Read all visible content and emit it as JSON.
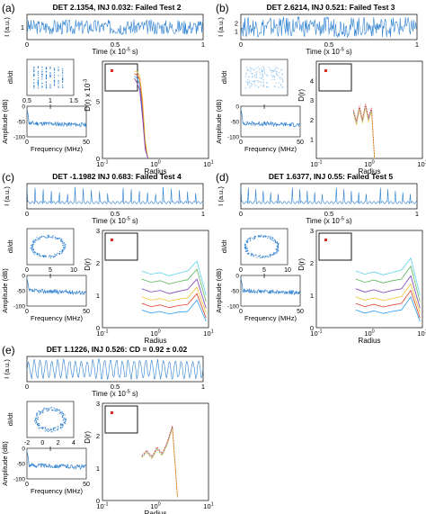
{
  "figure": {
    "domain": "Chart"
  },
  "colors": {
    "trace": "#2b7fd0",
    "trace_light": "#8ec4ee",
    "curves": [
      "#2a9df4",
      "#e0402a",
      "#f2c233",
      "#7a3ab8",
      "#5cb85c",
      "#61d4e8"
    ],
    "marker": "#e8261d",
    "axis": "#000000"
  },
  "chart_data": [
    {
      "panel": "(a)",
      "type": "line",
      "title": "DET 2.1354, INJ 0.032: Failed Test 2",
      "time_series": {
        "ylabel": "I (a.u.)",
        "xlabel": "Time (x 10^-5 s)",
        "xlim": [
          0,
          1
        ],
        "xticks": [
          "0",
          "0.5",
          "1"
        ],
        "ylim": [
          0.5,
          1.5
        ],
        "yticks": [
          "1"
        ],
        "pattern": "noise",
        "spikes": 0,
        "amplitude": 0.35
      },
      "phase": {
        "ylabel": "dI/dt",
        "xlabel": "I",
        "xticks": [
          "0.5",
          "1",
          "1.5"
        ],
        "shape": "stripes"
      },
      "spectrum": {
        "ylabel": "Amplitude (dB)",
        "xlabel": "Frequency (MHz)",
        "xticks": [
          "0",
          "50"
        ],
        "yticks": [
          "0",
          "-50",
          "-100"
        ],
        "ylim": [
          -100,
          0
        ],
        "level": -55
      },
      "correlation": {
        "ylabel": "D(r) x 10^-3",
        "xlabel": "Radius",
        "xscale": "log",
        "xticks": [
          "10^-1",
          "10^0",
          "10^1"
        ],
        "ylim": [
          0,
          8.5
        ],
        "yticks": [
          "0",
          "5"
        ],
        "x_range": [
          0.4,
          0.72
        ],
        "curves": [
          [
            7.2,
            7.0,
            6.5,
            4.0,
            1.0,
            0
          ],
          [
            7.4,
            7.3,
            6.9,
            4.6,
            1.3,
            0
          ],
          [
            7.6,
            7.6,
            7.2,
            5.2,
            1.6,
            0
          ],
          [
            7.0,
            6.6,
            6.0,
            3.6,
            0.8,
            0
          ]
        ]
      }
    },
    {
      "panel": "(b)",
      "type": "line",
      "title": "DET 2.6214, INJ 0.521: Failed Test 3",
      "time_series": {
        "ylabel": "I (a.u.)",
        "xlabel": "Time (x 10^-5 s)",
        "xlim": [
          0,
          1
        ],
        "xticks": [
          "0",
          "0.5",
          "1"
        ],
        "ylim": [
          0.5,
          2.5
        ],
        "yticks": [
          "1",
          "2"
        ],
        "pattern": "dense",
        "spikes": 0,
        "amplitude": 0.4
      },
      "phase": {
        "ylabel": "dI/dt",
        "xlabel": "I",
        "xticks": [],
        "shape": "faint"
      },
      "spectrum": {
        "ylabel": "Amplitude (dB)",
        "xlabel": "Frequency (MHz)",
        "xticks": [
          "0",
          "50"
        ],
        "yticks": [
          "0",
          "-50",
          "-100"
        ],
        "ylim": [
          -100,
          0
        ],
        "level": -55
      },
      "correlation": {
        "ylabel": "D(r)",
        "xlabel": "Radius",
        "xscale": "log",
        "xticks": [
          "10^-1",
          "10^0",
          "10^1"
        ],
        "ylim": [
          0,
          5
        ],
        "yticks": [
          "1",
          "2",
          "3",
          "4"
        ],
        "x_range": [
          0.5,
          1.25
        ],
        "curves": [
          [
            2.4,
            1.8,
            2.6,
            1.9,
            2.7,
            2.0,
            2.5,
            0
          ],
          [
            2.5,
            1.9,
            2.7,
            2.0,
            2.8,
            2.1,
            2.6,
            0
          ],
          [
            2.3,
            1.7,
            2.5,
            1.8,
            2.6,
            1.9,
            2.4,
            0
          ]
        ]
      }
    },
    {
      "panel": "(c)",
      "type": "line",
      "title": "DET -1.1982 INJ 0.683: Failed Test 4",
      "time_series": {
        "ylabel": "I (a.u.)",
        "xlabel": "Time (x 10^-5 s)",
        "xlim": [
          0,
          1
        ],
        "xticks": [
          "0",
          "0.5",
          "1"
        ],
        "ylim": [
          0,
          1
        ],
        "yticks": [],
        "pattern": "spikes",
        "spikes": 22,
        "amplitude": 0.8
      },
      "phase": {
        "ylabel": "dI/dt",
        "xlabel": "I",
        "xticks": [
          "0",
          "5",
          "10"
        ],
        "shape": "loop"
      },
      "spectrum": {
        "ylabel": "Amplitude (dB)",
        "xlabel": "Frequency (MHz)",
        "xticks": [
          "0",
          "50"
        ],
        "yticks": [
          "0",
          "-50",
          "-100"
        ],
        "ylim": [
          -100,
          0
        ],
        "level": -50
      },
      "correlation": {
        "ylabel": "D(r)",
        "xlabel": "Radius",
        "xscale": "log",
        "xticks": [
          "10^-1",
          "10^0",
          "10^1"
        ],
        "ylim": [
          0,
          3
        ],
        "yticks": [
          "0",
          "1",
          "2",
          "3"
        ],
        "x_range": [
          0.55,
          9
        ],
        "curves": [
          [
            0.55,
            0.45,
            0.5,
            0.42,
            0.48,
            0.5,
            0.85,
            0.2
          ],
          [
            0.75,
            0.65,
            0.7,
            0.62,
            0.68,
            0.72,
            1.05,
            0.3
          ],
          [
            0.95,
            0.85,
            0.9,
            0.82,
            0.88,
            0.92,
            1.25,
            0.45
          ],
          [
            1.2,
            1.1,
            1.15,
            1.05,
            1.12,
            1.18,
            1.5,
            0.6
          ],
          [
            1.5,
            1.4,
            1.45,
            1.35,
            1.42,
            1.48,
            1.8,
            0.8
          ],
          [
            1.75,
            1.65,
            1.7,
            1.6,
            1.68,
            1.75,
            2.05,
            1.0
          ]
        ]
      }
    },
    {
      "panel": "(d)",
      "type": "line",
      "title": "DET 1.6377, INJ 0.55: Failed Test 5",
      "time_series": {
        "ylabel": "I (a.u.)",
        "xlabel": "Time (x 10^-5 s)",
        "xlim": [
          0,
          1
        ],
        "xticks": [
          "0",
          "0.5",
          "1"
        ],
        "ylim": [
          0,
          1
        ],
        "yticks": [],
        "pattern": "spikes",
        "spikes": 24,
        "amplitude": 0.8
      },
      "phase": {
        "ylabel": "dI/dt",
        "xlabel": "I",
        "xticks": [
          "0",
          "5",
          "10"
        ],
        "shape": "loop"
      },
      "spectrum": {
        "ylabel": "Amplitude (dB)",
        "xlabel": "Frequency (MHz)",
        "xticks": [
          "0",
          "50"
        ],
        "yticks": [
          "0",
          "-50",
          "-100"
        ],
        "ylim": [
          -100,
          0
        ],
        "level": -50
      },
      "correlation": {
        "ylabel": "D(r)",
        "xlabel": "Radius",
        "xscale": "log",
        "xticks": [
          "10^-1",
          "10^0",
          "10^1"
        ],
        "ylim": [
          0,
          3
        ],
        "yticks": [
          "0",
          "1",
          "2",
          "3"
        ],
        "x_range": [
          0.55,
          9
        ],
        "curves": [
          [
            0.55,
            0.45,
            0.52,
            0.44,
            0.5,
            0.55,
            0.95,
            0.2
          ],
          [
            0.75,
            0.65,
            0.72,
            0.64,
            0.7,
            0.75,
            1.15,
            0.3
          ],
          [
            0.95,
            0.85,
            0.92,
            0.84,
            0.9,
            0.96,
            1.35,
            0.45
          ],
          [
            1.2,
            1.1,
            1.17,
            1.08,
            1.15,
            1.2,
            1.6,
            0.6
          ],
          [
            1.5,
            1.4,
            1.47,
            1.38,
            1.45,
            1.5,
            1.9,
            0.8
          ],
          [
            1.75,
            1.65,
            1.72,
            1.63,
            1.7,
            1.78,
            2.15,
            1.0
          ]
        ]
      }
    },
    {
      "panel": "(e)",
      "type": "line",
      "title": "DET 1.1226, INJ 0.526: CD = 0.92 ± 0.02",
      "time_series": {
        "ylabel": "I (a.u.)",
        "xlabel": "Time (x 10^-5 s)",
        "xlim": [
          0,
          1
        ],
        "xticks": [
          "0",
          "0.5",
          "1"
        ],
        "ylim": [
          0,
          1
        ],
        "yticks": [],
        "pattern": "oscillation",
        "spikes": 30,
        "amplitude": 0.5
      },
      "phase": {
        "ylabel": "dI/dt",
        "xlabel": "I",
        "xticks": [
          "-2",
          "0",
          "2",
          "4"
        ],
        "shape": "ring"
      },
      "spectrum": {
        "ylabel": "Amplitude (dB)",
        "xlabel": "Frequency (MHz)",
        "xticks": [
          "0",
          "50"
        ],
        "yticks": [
          "0",
          "-50",
          "-100"
        ],
        "ylim": [
          -100,
          0
        ],
        "level": -55
      },
      "correlation": {
        "ylabel": "D(r)",
        "xlabel": "Radius",
        "xscale": "log",
        "xticks": [
          "10^-1",
          "10^0",
          "10^1"
        ],
        "ylim": [
          0,
          3
        ],
        "yticks": [
          "0",
          "1",
          "2",
          "3"
        ],
        "x_range": [
          0.55,
          2.6
        ],
        "curves": [
          [
            1.35,
            1.5,
            1.3,
            1.6,
            1.4,
            1.75,
            2.25,
            0.1
          ],
          [
            1.38,
            1.55,
            1.35,
            1.65,
            1.45,
            1.8,
            2.3,
            0.1
          ],
          [
            1.32,
            1.48,
            1.28,
            1.58,
            1.38,
            1.72,
            2.2,
            0.1
          ]
        ]
      }
    }
  ]
}
